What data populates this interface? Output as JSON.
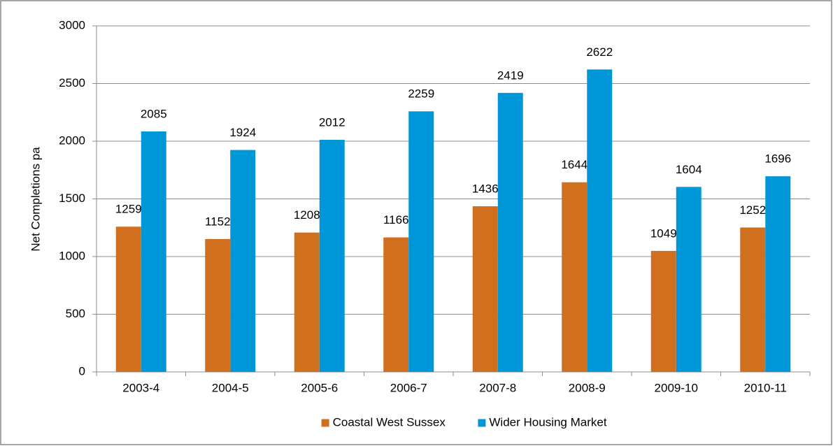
{
  "chart_data": {
    "type": "bar",
    "y_label": "Net Completions pa",
    "categories": [
      "2003-4",
      "2004-5",
      "2005-6",
      "2006-7",
      "2007-8",
      "2008-9",
      "2009-10",
      "2010-11"
    ],
    "series": [
      {
        "name": "Coastal West Sussex",
        "color": "#d0701f",
        "values": [
          1259,
          1152,
          1208,
          1166,
          1436,
          1644,
          1049,
          1252
        ]
      },
      {
        "name": "Wider Housing Market",
        "color": "#0097d8",
        "values": [
          2085,
          1924,
          2012,
          2259,
          2419,
          2622,
          1604,
          1696
        ]
      }
    ],
    "ylim": [
      0,
      3000
    ],
    "yticks": [
      0,
      500,
      1000,
      1500,
      2000,
      2500,
      3000
    ],
    "grid": true,
    "legend": "bottom"
  }
}
